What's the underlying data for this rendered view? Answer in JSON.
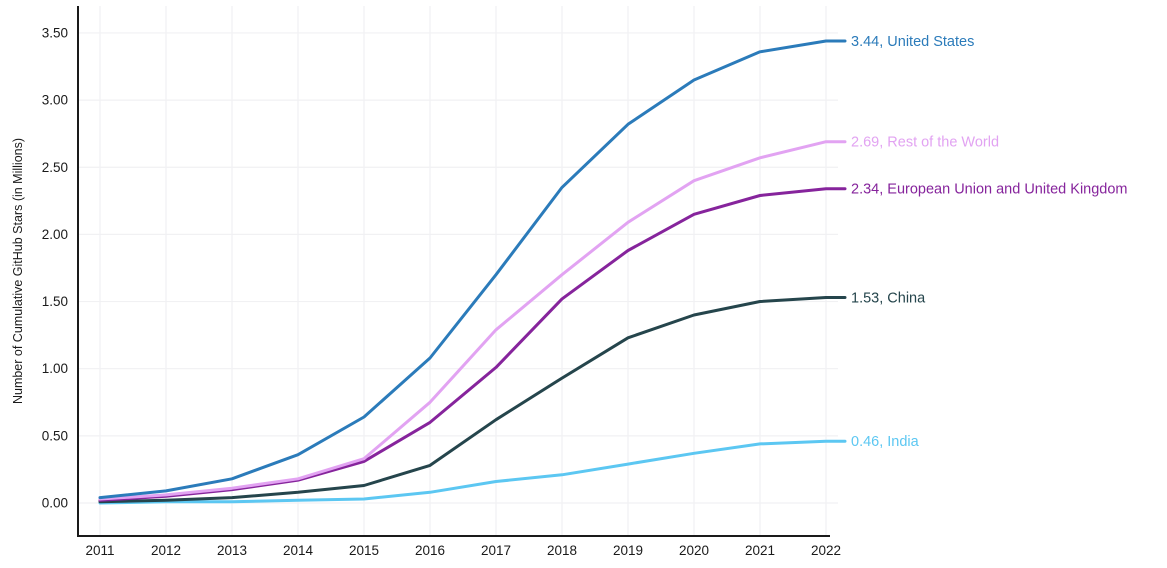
{
  "chart_data": {
    "type": "line",
    "ylabel": "Number of Cumulative GitHub Stars (in Millions)",
    "x": [
      2011,
      2012,
      2013,
      2014,
      2015,
      2016,
      2017,
      2018,
      2019,
      2020,
      2021,
      2022
    ],
    "x_tick_labels": [
      "2011",
      "2012",
      "2013",
      "2014",
      "2015",
      "2016",
      "2017",
      "2018",
      "2019",
      "2020",
      "2021",
      "2022"
    ],
    "y_ticks": [
      0.0,
      0.5,
      1.0,
      1.5,
      2.0,
      2.5,
      3.0,
      3.5
    ],
    "y_tick_labels": [
      "0.00",
      "0.50",
      "1.00",
      "1.50",
      "2.00",
      "2.50",
      "3.00",
      "3.50"
    ],
    "ylim": [
      0,
      3.5
    ],
    "grid": true,
    "legend_position": "right-end-labels",
    "series": [
      {
        "name": "India",
        "color": "#5CC7F2",
        "end_label": "0.46, India",
        "values": [
          0.0,
          0.01,
          0.01,
          0.02,
          0.03,
          0.08,
          0.16,
          0.21,
          0.29,
          0.37,
          0.44,
          0.46
        ]
      },
      {
        "name": "China",
        "color": "#25454C",
        "end_label": "1.53, China",
        "values": [
          0.01,
          0.02,
          0.04,
          0.08,
          0.13,
          0.28,
          0.62,
          0.93,
          1.23,
          1.4,
          1.5,
          1.53
        ]
      },
      {
        "name": "European Union and United Kingdom",
        "color": "#86249C",
        "end_label": "2.34, European Union and United Kingdom",
        "values": [
          0.02,
          0.05,
          0.1,
          0.17,
          0.31,
          0.6,
          1.01,
          1.52,
          1.88,
          2.15,
          2.29,
          2.34
        ]
      },
      {
        "name": "Rest of the World",
        "color": "#E2A3F2",
        "end_label": "2.69, Rest of the World",
        "values": [
          0.03,
          0.06,
          0.11,
          0.18,
          0.33,
          0.75,
          1.29,
          1.7,
          2.09,
          2.4,
          2.57,
          2.69
        ]
      },
      {
        "name": "United States",
        "color": "#2B7BBA",
        "end_label": "3.44, United States",
        "values": [
          0.04,
          0.09,
          0.18,
          0.36,
          0.64,
          1.08,
          1.7,
          2.35,
          2.82,
          3.15,
          3.36,
          3.44
        ]
      }
    ]
  },
  "style": {
    "spine_color": "#1A1A1A",
    "grid_color": "#F1F1F3",
    "tick_label_color": "#1A1A1A",
    "background": "#FFFFFF"
  }
}
